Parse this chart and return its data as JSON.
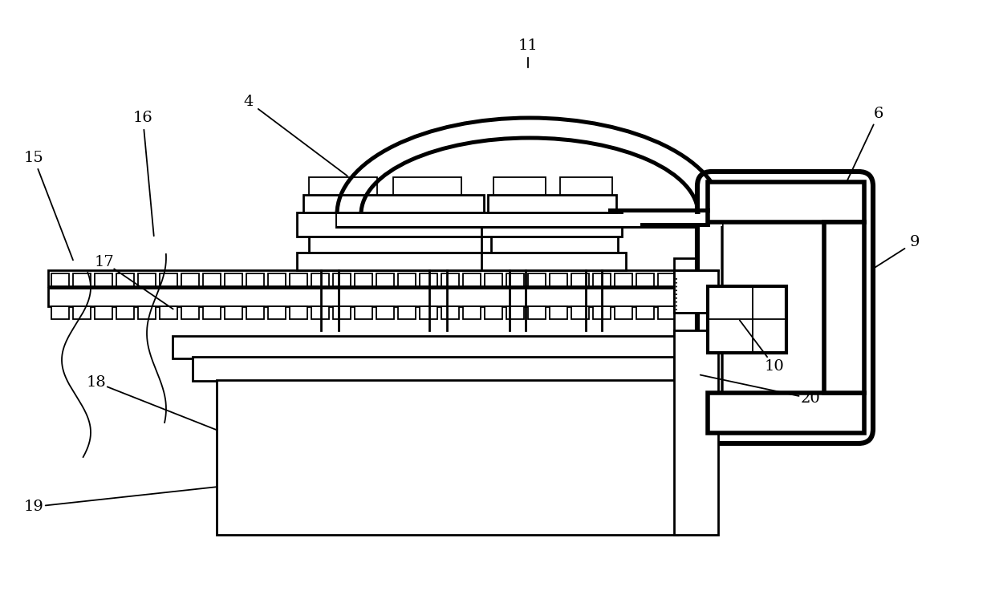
{
  "background_color": "#ffffff",
  "line_color": "#000000",
  "lw": 2.0,
  "tlw": 1.3,
  "fig_width": 12.4,
  "fig_height": 7.67,
  "dpi": 100
}
